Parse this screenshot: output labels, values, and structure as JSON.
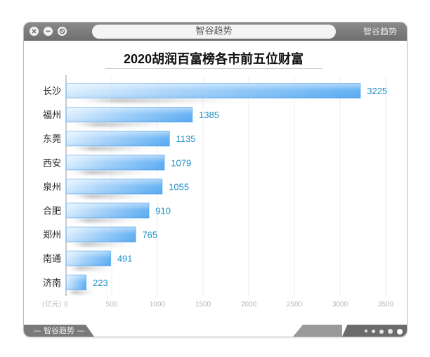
{
  "window": {
    "url_text": "智谷趋势",
    "brand_top": "智谷趋势",
    "footer_brand": "— 智谷趋势 —"
  },
  "chart_data": {
    "type": "bar",
    "orientation": "horizontal",
    "title": "2020胡润百富榜各市前五位财富",
    "unit_label": "(亿元)",
    "categories": [
      "长沙",
      "福州",
      "东莞",
      "西安",
      "泉州",
      "合肥",
      "郑州",
      "南通",
      "济南"
    ],
    "values": [
      3225,
      1385,
      1135,
      1079,
      1055,
      910,
      765,
      491,
      223
    ],
    "xlim": [
      0,
      3500
    ],
    "xticks": [
      0,
      500,
      1000,
      1500,
      2000,
      2500,
      3000,
      3500
    ],
    "grid": true,
    "colors": {
      "bar": "#6cb6f5",
      "bar_light": "#d6ebfd",
      "value_label": "#1e90c8"
    }
  }
}
